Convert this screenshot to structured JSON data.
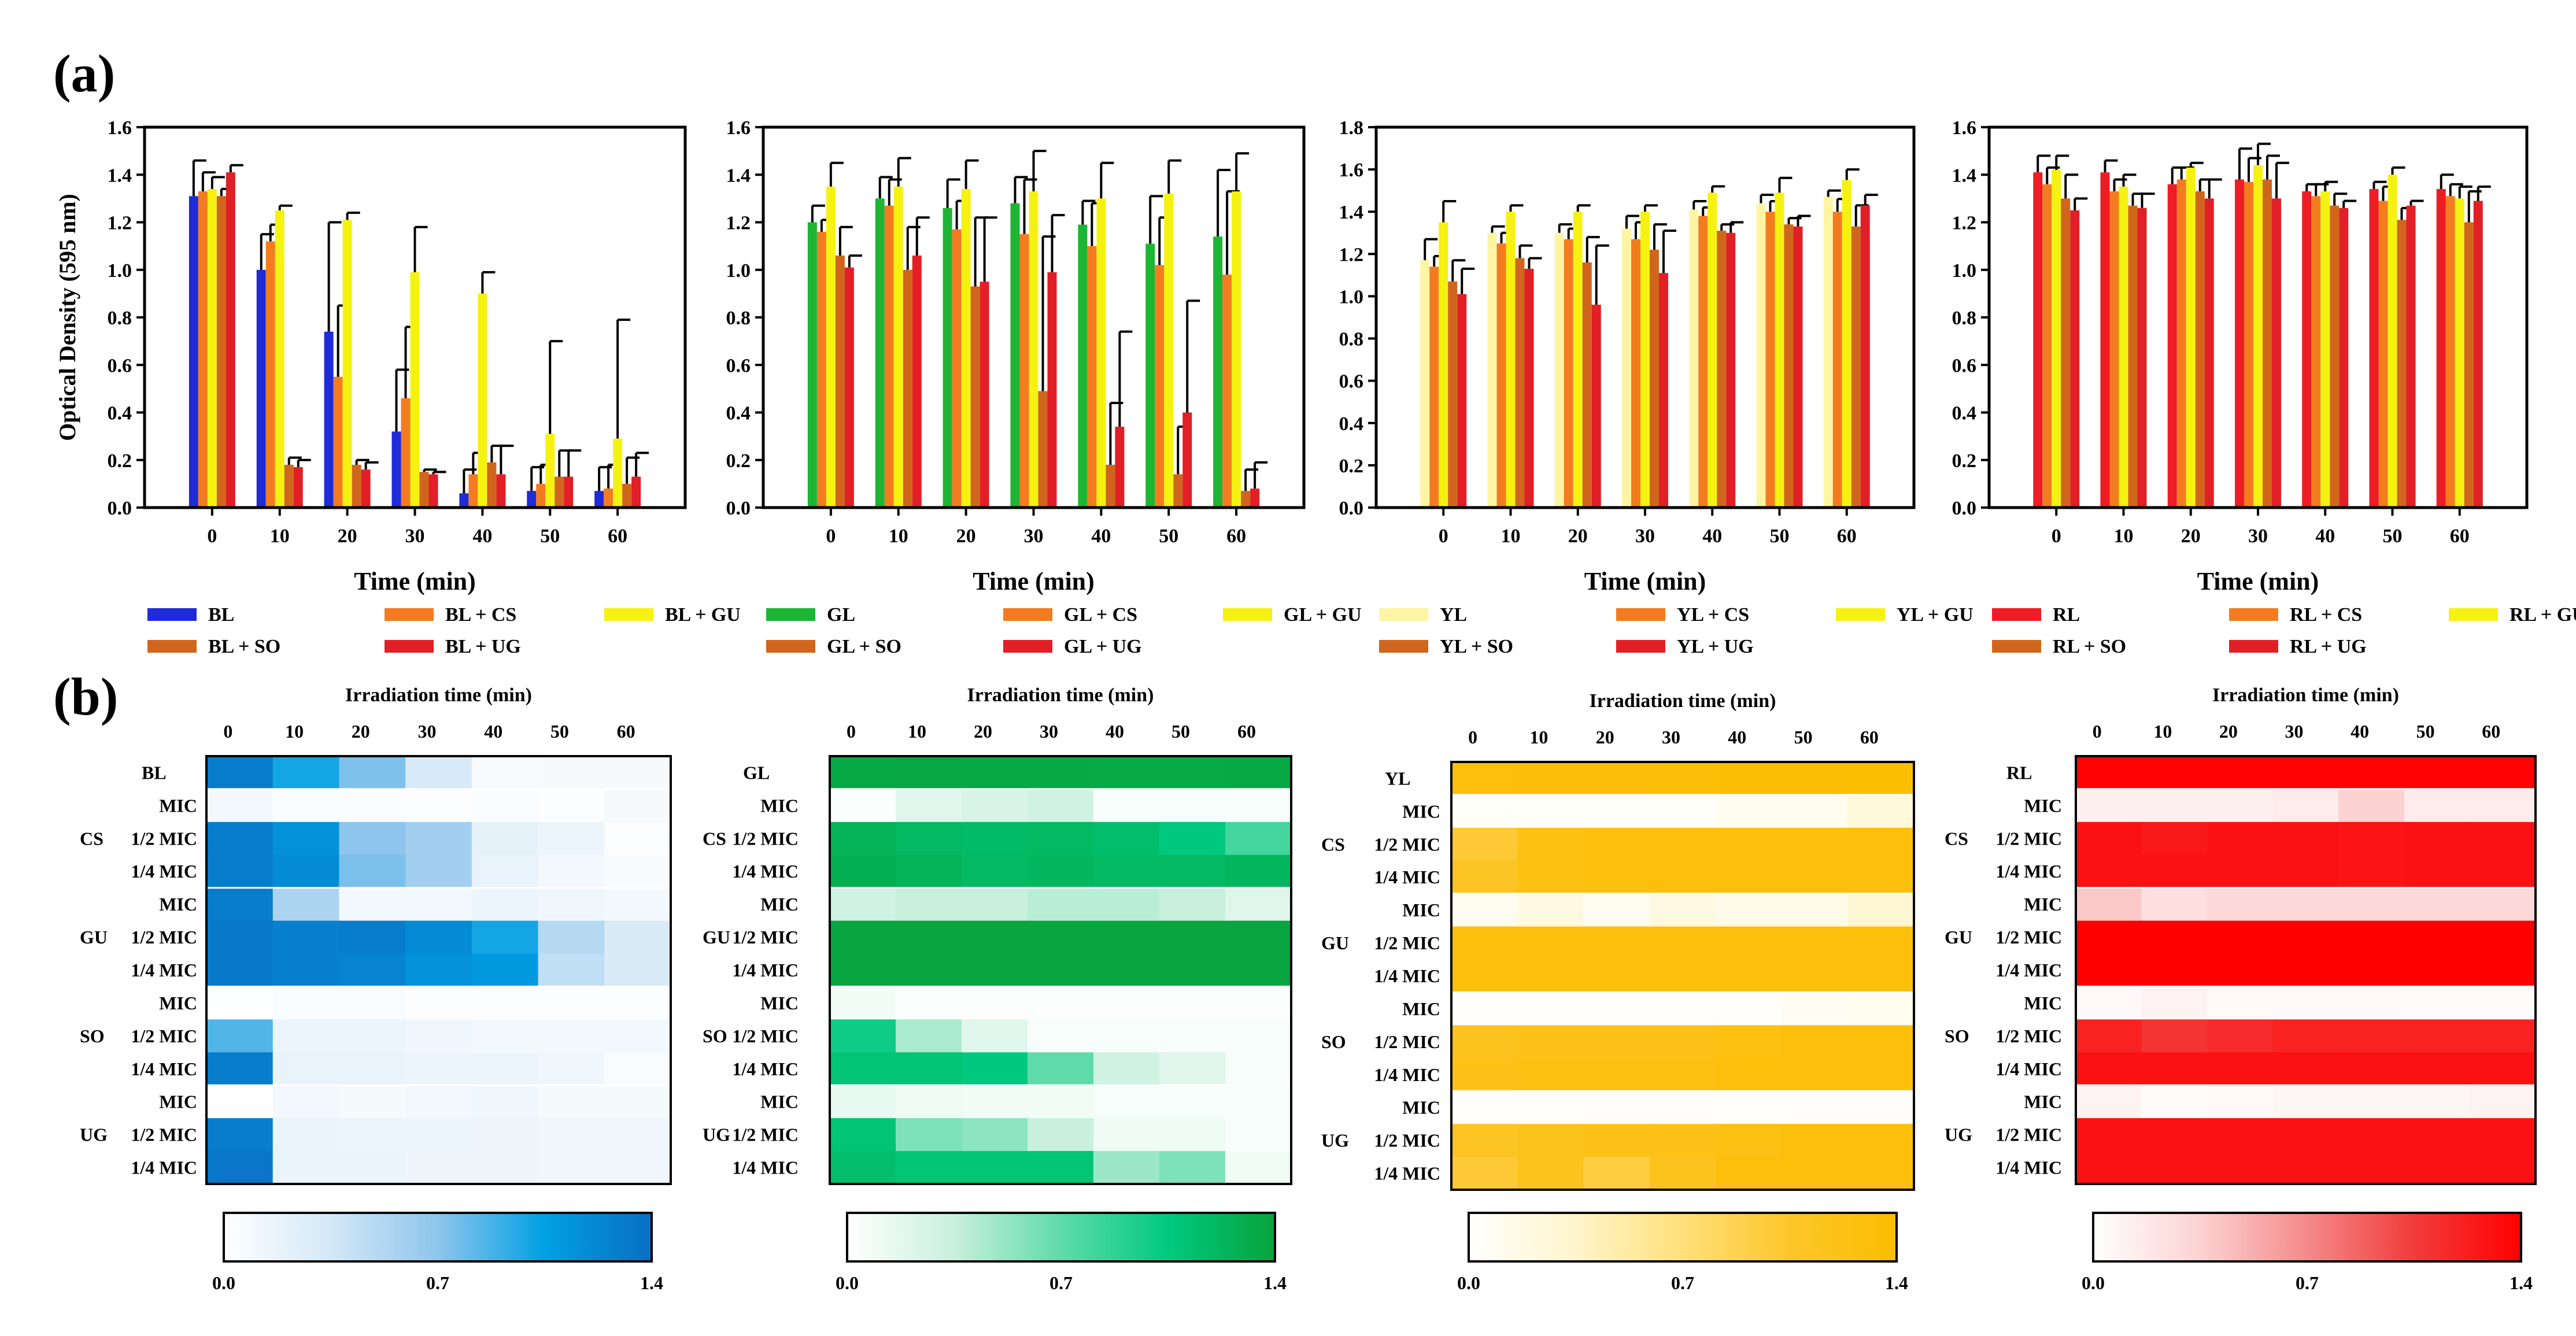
{
  "panel_labels": {
    "a": "(a)",
    "b": "(b)"
  },
  "bar_panels_common": {
    "ylabel": "Optical Density (595 nm)",
    "xlabel": "Time (min)",
    "categories": [
      "0",
      "10",
      "20",
      "30",
      "40",
      "50",
      "60"
    ]
  },
  "heatmap_common": {
    "title": "Irradiation time (min)",
    "columns": [
      "0",
      "10",
      "20",
      "30",
      "40",
      "50",
      "60"
    ],
    "group_labels": [
      "CS",
      "GU",
      "SO",
      "UG"
    ],
    "sub_rows": [
      "MIC",
      "1/2 MIC",
      "1/4 MIC"
    ],
    "colorbar_ticks": [
      "0.0",
      "0.7",
      "1.4"
    ],
    "vmin": 0,
    "vmax": 1.4
  },
  "chart_data": [
    {
      "type": "bar",
      "panel": "a",
      "light": "BL",
      "ylim": [
        0,
        1.6
      ],
      "yticks": [
        "0.0",
        "0.2",
        "0.4",
        "0.6",
        "0.8",
        "1.0",
        "1.2",
        "1.4",
        "1.6"
      ],
      "series": [
        {
          "name": "BL",
          "color": "#1e2bd6",
          "values": [
            1.31,
            1.0,
            0.74,
            0.32,
            0.06,
            0.07,
            0.07
          ],
          "errors": [
            0.15,
            0.15,
            0.46,
            0.26,
            0.1,
            0.1,
            0.1
          ]
        },
        {
          "name": "BL + CS",
          "color": "#f47c20",
          "values": [
            1.33,
            1.12,
            0.55,
            0.46,
            0.14,
            0.1,
            0.08
          ],
          "errors": [
            0.08,
            0.07,
            0.3,
            0.3,
            0.09,
            0.08,
            0.1
          ]
        },
        {
          "name": "BL + GU",
          "color": "#f5f212",
          "values": [
            1.34,
            1.25,
            1.21,
            0.99,
            0.9,
            0.31,
            0.29
          ],
          "errors": [
            0.05,
            0.02,
            0.03,
            0.19,
            0.09,
            0.39,
            0.5
          ]
        },
        {
          "name": "BL + SO",
          "color": "#d0661d",
          "values": [
            1.31,
            0.18,
            0.18,
            0.15,
            0.19,
            0.13,
            0.1
          ],
          "errors": [
            0.03,
            0.03,
            0.02,
            0.01,
            0.07,
            0.11,
            0.11
          ]
        },
        {
          "name": "BL + UG",
          "color": "#e21f26",
          "values": [
            1.41,
            0.17,
            0.16,
            0.14,
            0.14,
            0.13,
            0.13
          ],
          "errors": [
            0.03,
            0.03,
            0.03,
            0.01,
            0.12,
            0.11,
            0.1
          ]
        }
      ]
    },
    {
      "type": "bar",
      "panel": "a",
      "light": "GL",
      "ylim": [
        0,
        1.6
      ],
      "yticks": [
        "0.0",
        "0.2",
        "0.4",
        "0.6",
        "0.8",
        "1.0",
        "1.2",
        "1.4",
        "1.6"
      ],
      "series": [
        {
          "name": "GL",
          "color": "#1db534",
          "values": [
            1.2,
            1.3,
            1.26,
            1.28,
            1.19,
            1.11,
            1.14
          ],
          "errors": [
            0.07,
            0.09,
            0.12,
            0.11,
            0.1,
            0.2,
            0.28
          ]
        },
        {
          "name": "GL + CS",
          "color": "#f47c20",
          "values": [
            1.16,
            1.27,
            1.17,
            1.15,
            1.1,
            1.02,
            0.98
          ],
          "errors": [
            0.05,
            0.11,
            0.12,
            0.23,
            0.18,
            0.2,
            0.35
          ]
        },
        {
          "name": "GL + GU",
          "color": "#f5f212",
          "values": [
            1.35,
            1.35,
            1.34,
            1.33,
            1.3,
            1.32,
            1.33
          ],
          "errors": [
            0.1,
            0.12,
            0.12,
            0.17,
            0.15,
            0.14,
            0.16
          ]
        },
        {
          "name": "GL + SO",
          "color": "#d0661d",
          "values": [
            1.06,
            1.0,
            0.93,
            0.49,
            0.18,
            0.14,
            0.07
          ],
          "errors": [
            0.12,
            0.18,
            0.29,
            0.65,
            0.26,
            0.2,
            0.09
          ]
        },
        {
          "name": "GL + UG",
          "color": "#e21f26",
          "values": [
            1.01,
            1.06,
            0.95,
            0.99,
            0.34,
            0.4,
            0.08
          ],
          "errors": [
            0.05,
            0.16,
            0.27,
            0.24,
            0.4,
            0.47,
            0.11
          ]
        }
      ]
    },
    {
      "type": "bar",
      "panel": "a",
      "light": "YL",
      "ylim": [
        0,
        1.8
      ],
      "yticks": [
        "0.0",
        "0.2",
        "0.4",
        "0.6",
        "0.8",
        "1.0",
        "1.2",
        "1.4",
        "1.6",
        "1.8"
      ],
      "series": [
        {
          "name": "YL",
          "color": "#fdf5a4",
          "values": [
            1.17,
            1.3,
            1.3,
            1.32,
            1.41,
            1.44,
            1.47
          ],
          "errors": [
            0.1,
            0.03,
            0.04,
            0.06,
            0.04,
            0.04,
            0.03
          ]
        },
        {
          "name": "YL + CS",
          "color": "#f47c20",
          "values": [
            1.14,
            1.25,
            1.27,
            1.27,
            1.38,
            1.4,
            1.4
          ],
          "errors": [
            0.05,
            0.05,
            0.05,
            0.08,
            0.04,
            0.05,
            0.06
          ]
        },
        {
          "name": "YL + GU",
          "color": "#f5f212",
          "values": [
            1.35,
            1.4,
            1.4,
            1.4,
            1.49,
            1.49,
            1.55
          ],
          "errors": [
            0.1,
            0.03,
            0.03,
            0.03,
            0.03,
            0.07,
            0.05
          ]
        },
        {
          "name": "YL + SO",
          "color": "#d0661d",
          "values": [
            1.07,
            1.18,
            1.16,
            1.22,
            1.31,
            1.34,
            1.33
          ],
          "errors": [
            0.1,
            0.06,
            0.12,
            0.12,
            0.03,
            0.03,
            0.1
          ]
        },
        {
          "name": "YL + UG",
          "color": "#e21f26",
          "values": [
            1.01,
            1.13,
            0.96,
            1.11,
            1.3,
            1.33,
            1.43
          ],
          "errors": [
            0.12,
            0.05,
            0.28,
            0.2,
            0.05,
            0.05,
            0.05
          ]
        }
      ]
    },
    {
      "type": "bar",
      "panel": "a",
      "light": "RL",
      "ylim": [
        0,
        1.6
      ],
      "yticks": [
        "0.0",
        "0.2",
        "0.4",
        "0.6",
        "0.8",
        "1.0",
        "1.2",
        "1.4",
        "1.6"
      ],
      "series": [
        {
          "name": "RL",
          "color": "#ee1c24",
          "values": [
            1.41,
            1.41,
            1.36,
            1.38,
            1.33,
            1.34,
            1.34
          ],
          "errors": [
            0.07,
            0.05,
            0.07,
            0.13,
            0.03,
            0.03,
            0.06
          ]
        },
        {
          "name": "RL + CS",
          "color": "#f47c20",
          "values": [
            1.36,
            1.33,
            1.38,
            1.37,
            1.31,
            1.29,
            1.31
          ],
          "errors": [
            0.07,
            0.05,
            0.05,
            0.1,
            0.05,
            0.06,
            0.05
          ]
        },
        {
          "name": "RL + GU",
          "color": "#f5f212",
          "values": [
            1.42,
            1.35,
            1.43,
            1.44,
            1.33,
            1.4,
            1.3
          ],
          "errors": [
            0.06,
            0.05,
            0.02,
            0.09,
            0.04,
            0.03,
            0.05
          ]
        },
        {
          "name": "RL + SO",
          "color": "#d0661d",
          "values": [
            1.3,
            1.27,
            1.33,
            1.38,
            1.27,
            1.21,
            1.2
          ],
          "errors": [
            0.1,
            0.05,
            0.05,
            0.1,
            0.05,
            0.05,
            0.13
          ]
        },
        {
          "name": "RL + UG",
          "color": "#e21f26",
          "values": [
            1.25,
            1.26,
            1.3,
            1.3,
            1.26,
            1.27,
            1.29
          ],
          "errors": [
            0.05,
            0.06,
            0.08,
            0.15,
            0.03,
            0.02,
            0.06
          ]
        }
      ]
    },
    {
      "type": "heatmap",
      "panel": "b",
      "light": "BL",
      "color_low": "#ffffff",
      "color_high": "#0a6fc2",
      "colors": [
        "#ffffff",
        "#d4e8f7",
        "#8ec5ec",
        "#00a0e3",
        "#0a6fc2"
      ],
      "rows": [
        "BL",
        "MIC",
        "1/2 MIC",
        "1/4 MIC",
        "MIC",
        "1/2 MIC",
        "1/4 MIC",
        "MIC",
        "1/2 MIC",
        "1/4 MIC",
        "MIC",
        "1/2 MIC",
        "1/4 MIC"
      ],
      "values": [
        [
          1.31,
          1.0,
          0.74,
          0.32,
          0.06,
          0.07,
          0.07
        ],
        [
          0.1,
          0.05,
          0.04,
          0.03,
          0.05,
          0.03,
          0.07
        ],
        [
          1.3,
          1.15,
          0.7,
          0.6,
          0.2,
          0.15,
          0.03
        ],
        [
          1.31,
          1.2,
          0.75,
          0.6,
          0.18,
          0.1,
          0.06
        ],
        [
          1.3,
          0.55,
          0.1,
          0.1,
          0.15,
          0.12,
          0.1
        ],
        [
          1.33,
          1.28,
          1.3,
          1.2,
          1.0,
          0.5,
          0.3
        ],
        [
          1.33,
          1.28,
          1.25,
          1.15,
          1.1,
          0.45,
          0.3
        ],
        [
          0.02,
          0.05,
          0.05,
          0.03,
          0.03,
          0.03,
          0.03
        ],
        [
          0.85,
          0.15,
          0.15,
          0.12,
          0.1,
          0.1,
          0.1
        ],
        [
          1.3,
          0.18,
          0.18,
          0.15,
          0.15,
          0.12,
          0.05
        ],
        [
          0.01,
          0.1,
          0.08,
          0.1,
          0.12,
          0.08,
          0.08
        ],
        [
          1.3,
          0.17,
          0.15,
          0.15,
          0.14,
          0.13,
          0.13
        ],
        [
          1.35,
          0.17,
          0.16,
          0.14,
          0.14,
          0.13,
          0.13
        ]
      ]
    },
    {
      "type": "heatmap",
      "panel": "b",
      "light": "GL",
      "color_low": "#ffffff",
      "color_high": "#08a33c",
      "colors": [
        "#ffffff",
        "#c8f0dd",
        "#5fdbaa",
        "#00c97f",
        "#08a33c"
      ],
      "rows": [
        "GL",
        "MIC",
        "1/2 MIC",
        "1/4 MIC",
        "MIC",
        "1/2 MIC",
        "1/4 MIC",
        "MIC",
        "1/2 MIC",
        "1/4 MIC",
        "MIC",
        "1/2 MIC",
        "1/4 MIC"
      ],
      "values": [
        [
          1.35,
          1.36,
          1.35,
          1.35,
          1.34,
          1.34,
          1.35
        ],
        [
          0.03,
          0.2,
          0.25,
          0.3,
          0.05,
          0.05,
          0.05
        ],
        [
          1.25,
          1.2,
          1.18,
          1.2,
          1.15,
          1.05,
          0.8
        ],
        [
          1.28,
          1.25,
          1.2,
          1.22,
          1.2,
          1.2,
          1.22
        ],
        [
          0.3,
          0.35,
          0.35,
          0.4,
          0.4,
          0.35,
          0.2
        ],
        [
          1.38,
          1.38,
          1.38,
          1.38,
          1.38,
          1.38,
          1.38
        ],
        [
          1.38,
          1.38,
          1.38,
          1.38,
          1.38,
          1.38,
          1.38
        ],
        [
          0.08,
          0.03,
          0.02,
          0.02,
          0.02,
          0.02,
          0.02
        ],
        [
          1.0,
          0.45,
          0.2,
          0.05,
          0.05,
          0.05,
          0.05
        ],
        [
          1.1,
          1.1,
          1.05,
          0.7,
          0.3,
          0.2,
          0.05
        ],
        [
          0.15,
          0.1,
          0.08,
          0.08,
          0.05,
          0.05,
          0.05
        ],
        [
          1.1,
          0.6,
          0.55,
          0.35,
          0.1,
          0.1,
          0.05
        ],
        [
          1.15,
          1.1,
          1.1,
          1.1,
          0.5,
          0.6,
          0.08
        ]
      ]
    },
    {
      "type": "heatmap",
      "panel": "b",
      "light": "YL",
      "color_low": "#ffffff",
      "color_high": "#fbbd00",
      "colors": [
        "#ffffff",
        "#fff5cc",
        "#ffe07a",
        "#fdc62a",
        "#fbbd00"
      ],
      "rows": [
        "YL",
        "MIC",
        "1/2 MIC",
        "1/4 MIC",
        "MIC",
        "1/2 MIC",
        "1/4 MIC",
        "MIC",
        "1/2 MIC",
        "1/4 MIC",
        "MIC",
        "1/2 MIC",
        "1/4 MIC"
      ],
      "values": [
        [
          1.3,
          1.32,
          1.32,
          1.34,
          1.36,
          1.36,
          1.38
        ],
        [
          0.05,
          0.05,
          0.05,
          0.05,
          0.1,
          0.1,
          0.25
        ],
        [
          1.0,
          1.25,
          1.3,
          1.3,
          1.3,
          1.3,
          1.3
        ],
        [
          1.1,
          1.25,
          1.3,
          1.3,
          1.3,
          1.3,
          1.3
        ],
        [
          0.1,
          0.2,
          0.1,
          0.2,
          0.15,
          0.15,
          0.3
        ],
        [
          1.3,
          1.3,
          1.3,
          1.3,
          1.3,
          1.3,
          1.3
        ],
        [
          1.3,
          1.3,
          1.3,
          1.3,
          1.3,
          1.3,
          1.3
        ],
        [
          0.03,
          0.03,
          0.03,
          0.03,
          0.03,
          0.08,
          0.1
        ],
        [
          1.15,
          1.2,
          1.2,
          1.2,
          1.25,
          1.3,
          1.3
        ],
        [
          1.2,
          1.25,
          1.25,
          1.25,
          1.3,
          1.3,
          1.3
        ],
        [
          0.03,
          0.03,
          0.03,
          0.03,
          0.03,
          0.03,
          0.03
        ],
        [
          1.1,
          1.15,
          1.2,
          1.2,
          1.25,
          1.3,
          1.3
        ],
        [
          1.0,
          1.15,
          0.95,
          1.15,
          1.3,
          1.3,
          1.3
        ]
      ]
    },
    {
      "type": "heatmap",
      "panel": "b",
      "light": "RL",
      "color_low": "#ffffff",
      "color_high": "#ff0000",
      "colors": [
        "#ffffff",
        "#fcd2d2",
        "#f58a8a",
        "#f23b3b",
        "#ff0000"
      ],
      "rows": [
        "RL",
        "MIC",
        "1/2 MIC",
        "1/4 MIC",
        "MIC",
        "1/2 MIC",
        "1/4 MIC",
        "MIC",
        "1/2 MIC",
        "1/4 MIC",
        "MIC",
        "1/2 MIC",
        "1/4 MIC"
      ],
      "values": [
        [
          1.38,
          1.38,
          1.38,
          1.38,
          1.38,
          1.38,
          1.38
        ],
        [
          0.12,
          0.12,
          0.12,
          0.15,
          0.35,
          0.15,
          0.15
        ],
        [
          1.3,
          1.25,
          1.3,
          1.3,
          1.28,
          1.3,
          1.3
        ],
        [
          1.3,
          1.3,
          1.3,
          1.3,
          1.28,
          1.3,
          1.3
        ],
        [
          0.4,
          0.25,
          0.3,
          0.3,
          0.3,
          0.3,
          0.3
        ],
        [
          1.4,
          1.4,
          1.4,
          1.4,
          1.4,
          1.4,
          1.4
        ],
        [
          1.4,
          1.4,
          1.4,
          1.4,
          1.4,
          1.4,
          1.4
        ],
        [
          0.05,
          0.1,
          0.05,
          0.05,
          0.05,
          0.03,
          0.03
        ],
        [
          1.2,
          1.1,
          1.15,
          1.2,
          1.2,
          1.2,
          1.2
        ],
        [
          1.3,
          1.3,
          1.3,
          1.3,
          1.3,
          1.3,
          1.3
        ],
        [
          0.1,
          0.03,
          0.05,
          0.08,
          0.08,
          0.08,
          0.1
        ],
        [
          1.3,
          1.3,
          1.3,
          1.3,
          1.3,
          1.3,
          1.3
        ],
        [
          1.3,
          1.3,
          1.3,
          1.3,
          1.3,
          1.3,
          1.3
        ]
      ]
    }
  ]
}
